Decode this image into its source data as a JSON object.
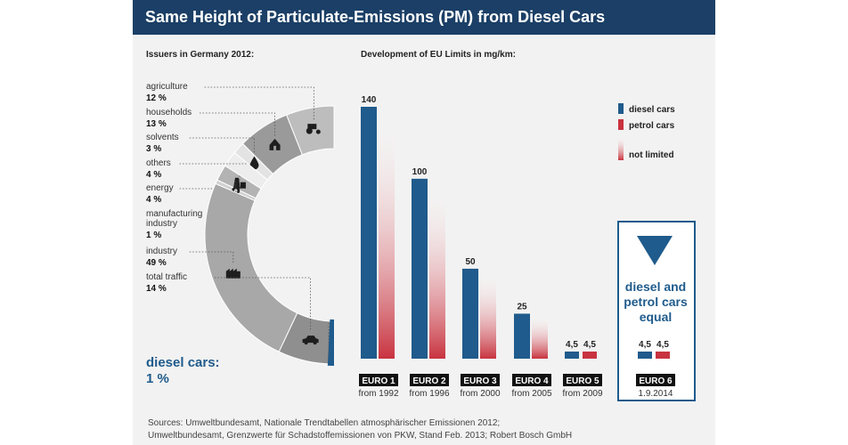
{
  "title": "Same Height of Particulate-Emissions (PM) from Diesel Cars",
  "left_title": "Issuers in Germany 2012:",
  "right_title": "Development of EU Limits in mg/km:",
  "diesel_cars_label": "diesel cars:",
  "diesel_cars_pct": "1 %",
  "equal_box_text": [
    "diesel and",
    "petrol cars",
    "equal"
  ],
  "sources": [
    "Sources: Umweltbundesamt, Nationale Trendtabellen atmosphärischer Emissionen 2012;",
    "Umweltbundesamt, Grenzwerte für Schadstoffemissionen von PKW, Stand Feb. 2013; Robert Bosch GmbH"
  ],
  "colors": {
    "diesel": "#1f5b8c",
    "petrol": "#c8333f",
    "header": "#1b3f66"
  },
  "chart_data": [
    {
      "type": "pie",
      "title": "Issuers in Germany 2012:",
      "unit": "%",
      "slices": [
        {
          "label": "agriculture",
          "value": 12,
          "value_label": "12 %",
          "icon": "tractor-icon"
        },
        {
          "label": "households",
          "value": 13,
          "value_label": "13 %",
          "icon": "house-icon"
        },
        {
          "label": "solvents",
          "value": 3,
          "value_label": "3 %",
          "icon": "drop-icon"
        },
        {
          "label": "others",
          "value": 4,
          "value_label": "4 %",
          "icon": ""
        },
        {
          "label": "energy",
          "value": 4,
          "value_label": "4 %",
          "icon": "power-plant-icon"
        },
        {
          "label": "manufacturing industry",
          "label_lines": [
            "manufacturing",
            "industry"
          ],
          "value": 1,
          "value_label": "1 %",
          "icon": "gear-icon"
        },
        {
          "label": "industry",
          "value": 49,
          "value_label": "49 %",
          "icon": "factory-icon"
        },
        {
          "label": "total traffic",
          "value": 14,
          "value_label": "14 %",
          "icon": "car-icon"
        }
      ],
      "highlight": {
        "label": "diesel cars:",
        "value": 1,
        "value_label": "1 %"
      }
    },
    {
      "type": "bar",
      "title": "Development of EU Limits in mg/km:",
      "ylabel": "mg/km",
      "categories": [
        "EURO 1",
        "EURO 2",
        "EURO 3",
        "EURO 4",
        "EURO 5",
        "EURO 6"
      ],
      "subtitles": [
        "from 1992",
        "from 1996",
        "from 2000",
        "from 2005",
        "from 2009",
        "1.9.2014"
      ],
      "series": [
        {
          "name": "diesel cars",
          "values": [
            140,
            100,
            50,
            25,
            4.5,
            4.5
          ],
          "labels": [
            "140",
            "100",
            "50",
            "25",
            "4,5",
            "4,5"
          ]
        },
        {
          "name": "petrol cars",
          "values": [
            null,
            null,
            null,
            null,
            4.5,
            4.5
          ],
          "labels": [
            "",
            "",
            "",
            "",
            "4,5",
            "4,5"
          ]
        }
      ],
      "not_limited_label": "not limited",
      "legend": {
        "placement": "top-right",
        "entries": [
          "diesel cars",
          "petrol cars",
          "not limited"
        ]
      }
    }
  ]
}
